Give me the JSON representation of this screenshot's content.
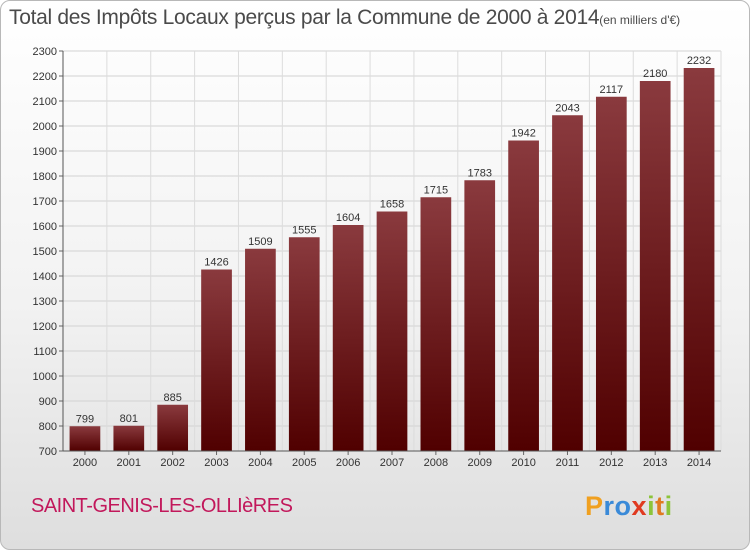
{
  "chart_data": {
    "type": "bar",
    "title": "Total des Impôts Locaux perçus par la Commune de 2000 à 2014",
    "unit_note": "(en milliers d'€)",
    "categories": [
      "2000",
      "2001",
      "2002",
      "2003",
      "2004",
      "2005",
      "2006",
      "2007",
      "2008",
      "2009",
      "2010",
      "2011",
      "2012",
      "2013",
      "2014"
    ],
    "values": [
      799,
      801,
      885,
      1426,
      1509,
      1555,
      1604,
      1658,
      1715,
      1783,
      1942,
      2043,
      2117,
      2180,
      2232
    ],
    "data_labels": [
      "799",
      "801",
      "885",
      "1426",
      "1509",
      "1555",
      "1604",
      "1658",
      "1715",
      "1783",
      "1942",
      "2043",
      "2117",
      "2180",
      "2232"
    ],
    "ylim": [
      700,
      2300
    ],
    "yticks": [
      700,
      800,
      900,
      1000,
      1100,
      1200,
      1300,
      1400,
      1500,
      1600,
      1700,
      1800,
      1900,
      2000,
      2100,
      2200,
      2300
    ],
    "ytick_labels": [
      "700",
      "800",
      "900",
      "1000",
      "1100",
      "1200",
      "1300",
      "1400",
      "1500",
      "1600",
      "1700",
      "1800",
      "1900",
      "2000",
      "2100",
      "2200",
      "2300"
    ],
    "xlabel": "",
    "ylabel": "",
    "grid": true,
    "bar_color_top": "#8a3a3e",
    "bar_color_bottom": "#500000"
  },
  "footer": {
    "commune": "SAINT-GENIS-LES-OLLIèRES",
    "brand_letters": [
      "P",
      "r",
      "o",
      "x",
      "i",
      "t",
      "i"
    ],
    "brand_colors": [
      "#f0a020",
      "#3a8ad8",
      "#3a8ad8",
      "#e03a20",
      "#8cc43a",
      "#e07a20",
      "#8cc43a"
    ]
  }
}
